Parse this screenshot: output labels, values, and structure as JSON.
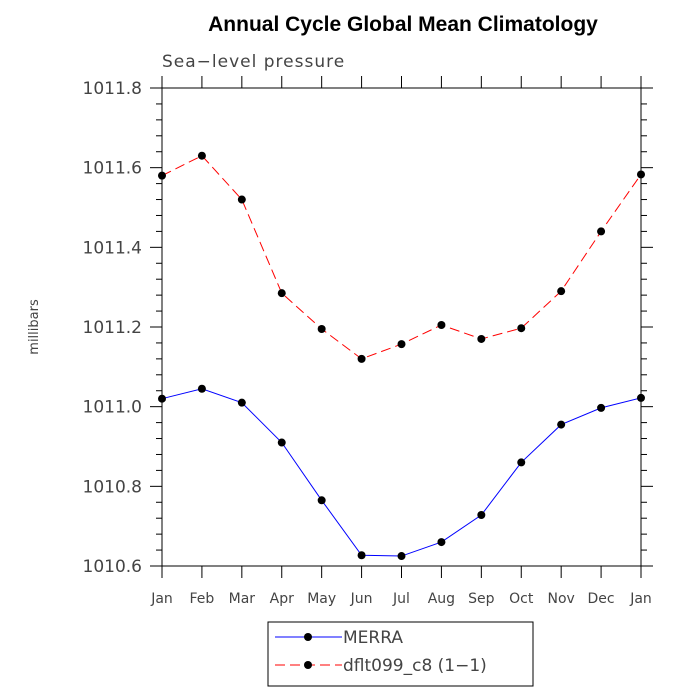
{
  "chart_data": {
    "type": "line",
    "title": "Annual Cycle Global Mean Climatology",
    "subtitle": "Sea−level pressure",
    "xlabel": "",
    "ylabel": "millibars",
    "categories": [
      "Jan",
      "Feb",
      "Mar",
      "Apr",
      "May",
      "Jun",
      "Jul",
      "Aug",
      "Sep",
      "Oct",
      "Nov",
      "Dec",
      "Jan"
    ],
    "ylim": [
      1010.6,
      1011.8
    ],
    "yticks": [
      "1010.6",
      "1010.8",
      "1011.0",
      "1011.2",
      "1011.4",
      "1011.6",
      "1011.8"
    ],
    "grid": false,
    "legend_position": "bottom-center",
    "series": [
      {
        "name": "MERRA",
        "color": "#0000ff",
        "dash": "solid",
        "values": [
          1011.02,
          1011.045,
          1011.01,
          1010.91,
          1010.765,
          1010.627,
          1010.625,
          1010.66,
          1010.728,
          1010.86,
          1010.955,
          1010.997,
          1011.022
        ]
      },
      {
        "name": "dflt099_c8 (1−1)",
        "color": "#ff0000",
        "dash": "dashed",
        "values": [
          1011.58,
          1011.63,
          1011.52,
          1011.285,
          1011.195,
          1011.12,
          1011.157,
          1011.205,
          1011.17,
          1011.197,
          1011.29,
          1011.44,
          1011.583
        ]
      }
    ]
  }
}
